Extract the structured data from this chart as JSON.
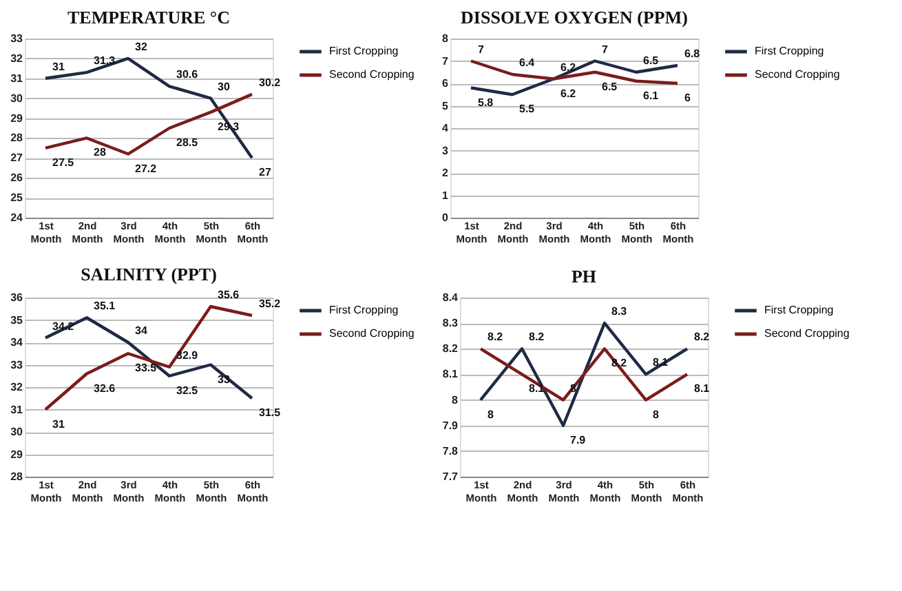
{
  "chart_data": [
    {
      "type": "line",
      "title": "TEMPERATURE °C",
      "categories": [
        "1st Month",
        "2nd Month",
        "3rd Month",
        "4th Month",
        "5th Month",
        "6th Month"
      ],
      "ylim": [
        24,
        33
      ],
      "yticks": [
        24,
        25,
        26,
        27,
        28,
        29,
        30,
        31,
        32,
        33
      ],
      "grid": "y",
      "legend": "right",
      "data_labels": true,
      "marker": "none",
      "line_style": "solid",
      "series": [
        {
          "name": "First Cropping",
          "color": "#1f2a44",
          "values": [
            31,
            31.3,
            32,
            30.6,
            30,
            27
          ]
        },
        {
          "name": "Second Cropping",
          "color": "#7b1c1c",
          "values": [
            27.5,
            28,
            27.2,
            28.5,
            29.3,
            30.2
          ]
        }
      ]
    },
    {
      "type": "line",
      "title": "DISSOLVE OXYGEN (PPM)",
      "categories": [
        "1st Month",
        "2nd Month",
        "3rd Month",
        "4th Month",
        "5th Month",
        "6th Month"
      ],
      "ylim": [
        0,
        8
      ],
      "yticks": [
        0,
        1,
        2,
        3,
        4,
        5,
        6,
        7,
        8
      ],
      "grid": "y",
      "legend": "right",
      "data_labels": true,
      "marker": "none",
      "line_style": "solid",
      "series": [
        {
          "name": "First Cropping",
          "color": "#1f2a44",
          "values": [
            5.8,
            5.5,
            6.2,
            7,
            6.5,
            6.8
          ]
        },
        {
          "name": "Second Cropping",
          "color": "#7b1c1c",
          "values": [
            7,
            6.4,
            6.2,
            6.5,
            6.1,
            6
          ]
        }
      ]
    },
    {
      "type": "line",
      "title": "SALINITY (PPT)",
      "categories": [
        "1st Month",
        "2nd Month",
        "3rd Month",
        "4th Month",
        "5th Month",
        "6th Month"
      ],
      "ylim": [
        28,
        36
      ],
      "yticks": [
        28,
        29,
        30,
        31,
        32,
        33,
        34,
        35,
        36
      ],
      "grid": "y",
      "legend": "right",
      "data_labels": true,
      "marker": "none",
      "line_style": "solid",
      "series": [
        {
          "name": "First Cropping",
          "color": "#1f2a44",
          "values": [
            34.2,
            35.1,
            34,
            32.5,
            33,
            31.5
          ]
        },
        {
          "name": "Second Cropping",
          "color": "#7b1c1c",
          "values": [
            31,
            32.6,
            33.5,
            32.9,
            35.6,
            35.2
          ]
        }
      ]
    },
    {
      "type": "line",
      "title": "PH",
      "categories": [
        "1st Month",
        "2nd Month",
        "3rd Month",
        "4th Month",
        "5th Month",
        "6th Month"
      ],
      "ylim": [
        7.7,
        8.4
      ],
      "yticks": [
        7.7,
        7.8,
        7.9,
        8,
        8.1,
        8.2,
        8.3,
        8.4
      ],
      "grid": "y",
      "legend": "right",
      "data_labels": true,
      "marker": "none",
      "line_style": "solid",
      "series": [
        {
          "name": "First Cropping",
          "color": "#1f2a44",
          "values": [
            8,
            8.2,
            7.9,
            8.3,
            8.1,
            8.2
          ]
        },
        {
          "name": "Second Cropping",
          "color": "#7b1c1c",
          "values": [
            8.2,
            8.1,
            8,
            8.2,
            8,
            8.1
          ]
        }
      ]
    }
  ]
}
